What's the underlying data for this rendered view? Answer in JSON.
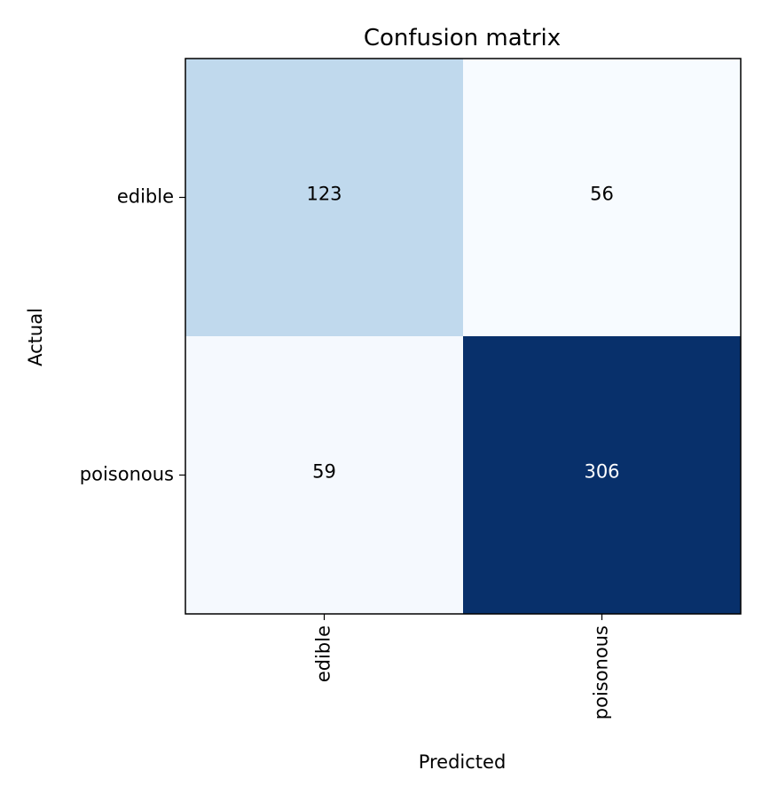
{
  "chart_data": {
    "type": "heatmap",
    "title": "Confusion matrix",
    "xlabel": "Predicted",
    "ylabel": "Actual",
    "x_categories": [
      "edible",
      "poisonous"
    ],
    "y_categories": [
      "edible",
      "poisonous"
    ],
    "values": [
      [
        123,
        56
      ],
      [
        59,
        306
      ]
    ],
    "colormap": "Blues",
    "grid": false,
    "legend": "none",
    "colors": {
      "low": "#f7fbff",
      "high": "#08306b",
      "text_dark": "#000000",
      "text_light": "#ffffff"
    }
  }
}
